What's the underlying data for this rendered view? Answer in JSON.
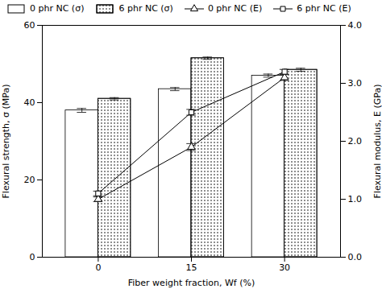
{
  "chart_data": {
    "type": "bar",
    "xlabel": "Fiber weight fraction, Wf (%)",
    "ylabel": "Flexural strength, σ (MPa)",
    "y2label": "Flexural modulus, E (GPa)",
    "categories": [
      "0",
      "15",
      "30"
    ],
    "series": [
      {
        "name": "0 phr NC (σ)",
        "type": "bar",
        "color": "white",
        "values": [
          38.0,
          43.5,
          47.0
        ],
        "errors": [
          0.5,
          0.4,
          0.4
        ]
      },
      {
        "name": "6 phr NC (σ)",
        "type": "bar",
        "color": "white",
        "values": [
          41.0,
          51.5,
          48.5
        ],
        "errors": [
          0.3,
          0.3,
          0.4
        ]
      },
      {
        "name": "0 phr NC (E)",
        "type": "line",
        "axis": "y2",
        "marker": "triangle",
        "color": "black",
        "values": [
          1.0,
          1.9,
          3.1
        ],
        "errors": [
          0.04,
          0.06,
          0.05
        ]
      },
      {
        "name": "6 phr NC (E)",
        "type": "line",
        "axis": "y2",
        "marker": "square",
        "color": "black",
        "values": [
          1.1,
          2.5,
          3.2
        ],
        "errors": [
          0.04,
          0.05,
          0.04
        ]
      }
    ],
    "ylim": [
      0,
      60
    ],
    "yticks": [
      0,
      20,
      40,
      60
    ],
    "y2lim": [
      0,
      4
    ],
    "y2ticks": [
      0,
      1,
      2,
      3,
      4
    ],
    "grid": false,
    "legend": "upper left"
  }
}
